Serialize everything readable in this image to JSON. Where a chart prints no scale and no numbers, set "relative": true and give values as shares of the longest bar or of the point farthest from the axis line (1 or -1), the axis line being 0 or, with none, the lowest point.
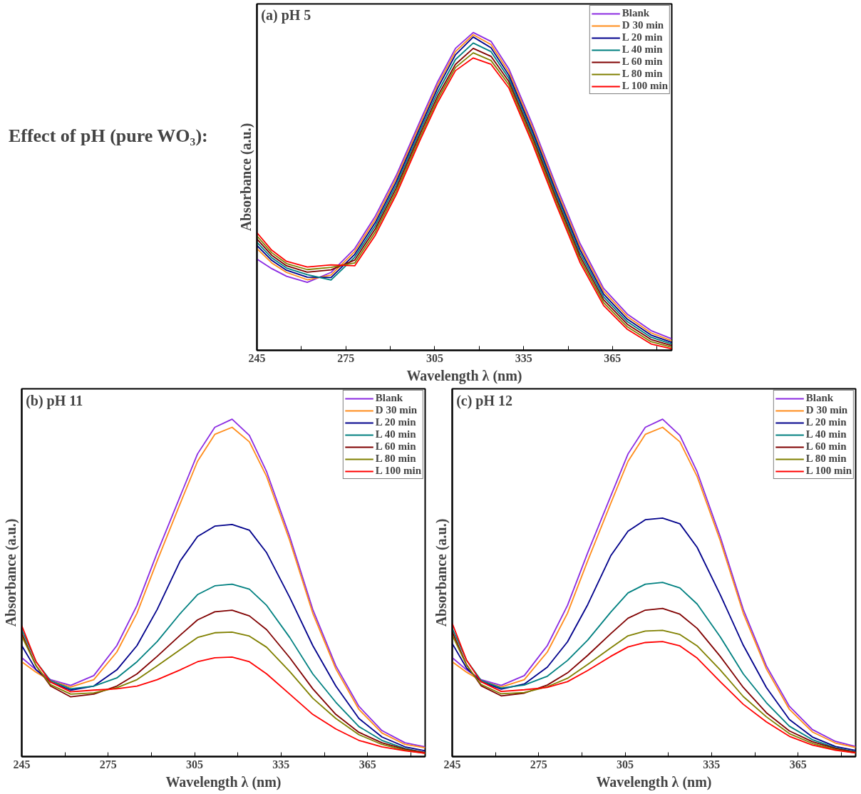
{
  "chart_data": [
    {
      "type": "other",
      "title": "Effect of pH (pure WO₃):"
    },
    {
      "type": "line",
      "title": "(a) pH 5",
      "xlabel": "Wavelength λ (nm)",
      "ylabel": "Absorbance (a.u.)",
      "relative": true,
      "tick_labels": "x",
      "legend": "top right",
      "x": [
        245,
        250,
        255,
        262,
        270,
        278,
        285,
        292,
        300,
        306,
        312,
        318,
        324,
        330,
        338,
        346,
        354,
        362,
        370,
        378,
        385
      ],
      "xlim": [
        245,
        385
      ],
      "xticks": [
        245,
        {
          "value": 260,
          "label": null
        },
        275,
        {
          "value": 290,
          "label": null
        },
        305,
        {
          "value": 320,
          "label": null
        },
        335,
        {
          "value": 350,
          "label": null
        },
        365,
        {
          "value": 380,
          "label": null
        }
      ],
      "series": [
        {
          "name": "Blank",
          "color": "#8b2be2",
          "values": [
            0.287,
            0.257,
            0.233,
            0.214,
            0.245,
            0.32,
            0.423,
            0.55,
            0.72,
            0.845,
            0.95,
            1.0,
            0.972,
            0.886,
            0.71,
            0.518,
            0.337,
            0.195,
            0.114,
            0.062,
            0.036
          ]
        },
        {
          "name": "D 30 min",
          "color": "#ff8c1a",
          "values": [
            0.32,
            0.275,
            0.245,
            0.222,
            0.237,
            0.311,
            0.413,
            0.54,
            0.71,
            0.835,
            0.94,
            0.993,
            0.962,
            0.876,
            0.7,
            0.508,
            0.327,
            0.186,
            0.106,
            0.055,
            0.03
          ]
        },
        {
          "name": "L 20 min",
          "color": "#00008b",
          "values": [
            0.33,
            0.283,
            0.252,
            0.23,
            0.229,
            0.302,
            0.403,
            0.53,
            0.7,
            0.825,
            0.93,
            0.986,
            0.952,
            0.866,
            0.69,
            0.498,
            0.317,
            0.177,
            0.098,
            0.048,
            0.025
          ]
        },
        {
          "name": "L 40 min",
          "color": "#008080",
          "values": [
            0.34,
            0.291,
            0.259,
            0.238,
            0.221,
            0.293,
            0.393,
            0.52,
            0.69,
            0.812,
            0.915,
            0.967,
            0.94,
            0.856,
            0.68,
            0.488,
            0.307,
            0.168,
            0.09,
            0.041,
            0.02
          ]
        },
        {
          "name": "L 60 min",
          "color": "#800000",
          "values": [
            0.35,
            0.299,
            0.266,
            0.246,
            0.253,
            0.284,
            0.383,
            0.51,
            0.68,
            0.8,
            0.9,
            0.95,
            0.925,
            0.846,
            0.67,
            0.478,
            0.297,
            0.159,
            0.082,
            0.034,
            0.015
          ]
        },
        {
          "name": "L 80 min",
          "color": "#808000",
          "values": [
            0.36,
            0.307,
            0.273,
            0.254,
            0.261,
            0.275,
            0.373,
            0.5,
            0.67,
            0.79,
            0.89,
            0.936,
            0.912,
            0.836,
            0.66,
            0.468,
            0.287,
            0.15,
            0.074,
            0.027,
            0.01
          ]
        },
        {
          "name": "L 100 min",
          "color": "#ff0000",
          "values": [
            0.37,
            0.315,
            0.28,
            0.262,
            0.269,
            0.266,
            0.363,
            0.49,
            0.66,
            0.78,
            0.88,
            0.92,
            0.9,
            0.826,
            0.65,
            0.458,
            0.277,
            0.141,
            0.066,
            0.02,
            0.005
          ]
        }
      ]
    },
    {
      "type": "line",
      "title": "(b) pH 11",
      "xlabel": "Wavelength λ (nm)",
      "ylabel": "Absorbance (a.u.)",
      "relative": true,
      "tick_labels": "x",
      "legend": "top right",
      "x": [
        245,
        250,
        255,
        262,
        270,
        278,
        285,
        292,
        300,
        306,
        312,
        318,
        324,
        330,
        338,
        346,
        354,
        362,
        370,
        378,
        385
      ],
      "xlim": [
        245,
        385
      ],
      "xticks": [
        245,
        {
          "value": 260,
          "label": null
        },
        275,
        {
          "value": 290,
          "label": null
        },
        305,
        {
          "value": 320,
          "label": null
        },
        335,
        {
          "value": 350,
          "label": null
        },
        365,
        {
          "value": 380,
          "label": null
        }
      ],
      "series": [
        {
          "name": "Blank",
          "color": "#8b2be2",
          "values": [
            0.293,
            0.257,
            0.228,
            0.211,
            0.24,
            0.329,
            0.448,
            0.604,
            0.772,
            0.897,
            0.976,
            1.0,
            0.952,
            0.844,
            0.652,
            0.436,
            0.269,
            0.149,
            0.077,
            0.041,
            0.029
          ]
        },
        {
          "name": "D 30 min",
          "color": "#ff8c1a",
          "values": [
            0.281,
            0.25,
            0.225,
            0.206,
            0.228,
            0.31,
            0.425,
            0.58,
            0.75,
            0.875,
            0.955,
            0.976,
            0.933,
            0.83,
            0.64,
            0.425,
            0.26,
            0.14,
            0.07,
            0.036,
            0.026
          ]
        },
        {
          "name": "L 20 min",
          "color": "#00008b",
          "values": [
            0.329,
            0.257,
            0.221,
            0.197,
            0.209,
            0.257,
            0.329,
            0.436,
            0.58,
            0.652,
            0.683,
            0.688,
            0.671,
            0.604,
            0.472,
            0.329,
            0.209,
            0.113,
            0.058,
            0.029,
            0.017
          ]
        },
        {
          "name": "L 40 min",
          "color": "#008080",
          "values": [
            0.376,
            0.281,
            0.225,
            0.201,
            0.209,
            0.233,
            0.281,
            0.341,
            0.424,
            0.48,
            0.506,
            0.511,
            0.496,
            0.448,
            0.353,
            0.245,
            0.161,
            0.089,
            0.048,
            0.024,
            0.012
          ]
        },
        {
          "name": "L 60 min",
          "color": "#800000",
          "values": [
            0.365,
            0.269,
            0.209,
            0.177,
            0.185,
            0.209,
            0.245,
            0.297,
            0.36,
            0.405,
            0.429,
            0.434,
            0.417,
            0.376,
            0.293,
            0.201,
            0.125,
            0.072,
            0.041,
            0.022,
            0.012
          ]
        },
        {
          "name": "L 80 min",
          "color": "#808000",
          "values": [
            0.357,
            0.269,
            0.213,
            0.185,
            0.189,
            0.204,
            0.228,
            0.269,
            0.317,
            0.353,
            0.367,
            0.369,
            0.357,
            0.324,
            0.252,
            0.173,
            0.113,
            0.065,
            0.036,
            0.019,
            0.01
          ]
        },
        {
          "name": "L 100 min",
          "color": "#ff0000",
          "values": [
            0.388,
            0.281,
            0.221,
            0.192,
            0.197,
            0.201,
            0.209,
            0.228,
            0.257,
            0.281,
            0.293,
            0.295,
            0.281,
            0.245,
            0.185,
            0.125,
            0.082,
            0.048,
            0.029,
            0.017,
            0.01
          ]
        }
      ]
    },
    {
      "type": "line",
      "title": "(c) pH 12",
      "xlabel": "Wavelength λ (nm)",
      "ylabel": "Absorbance (a.u.)",
      "relative": true,
      "tick_labels": "x",
      "legend": "top right",
      "x": [
        245,
        250,
        255,
        262,
        270,
        278,
        285,
        292,
        300,
        306,
        312,
        318,
        324,
        330,
        338,
        346,
        354,
        362,
        370,
        378,
        385
      ],
      "xlim": [
        245,
        385
      ],
      "xticks": [
        245,
        {
          "value": 260,
          "label": null
        },
        275,
        {
          "value": 290,
          "label": null
        },
        305,
        {
          "value": 320,
          "label": null
        },
        335,
        {
          "value": 350,
          "label": null
        },
        365,
        {
          "value": 380,
          "label": null
        }
      ],
      "series": [
        {
          "name": "Blank",
          "color": "#8b2be2",
          "values": [
            0.293,
            0.257,
            0.228,
            0.211,
            0.24,
            0.329,
            0.448,
            0.604,
            0.772,
            0.897,
            0.976,
            1.0,
            0.952,
            0.844,
            0.652,
            0.436,
            0.269,
            0.149,
            0.08,
            0.045,
            0.03
          ]
        },
        {
          "name": "D 30 min",
          "color": "#ff8c1a",
          "values": [
            0.281,
            0.25,
            0.225,
            0.206,
            0.228,
            0.31,
            0.425,
            0.58,
            0.75,
            0.875,
            0.955,
            0.976,
            0.933,
            0.83,
            0.64,
            0.425,
            0.26,
            0.14,
            0.073,
            0.04,
            0.027
          ]
        },
        {
          "name": "L 20 min",
          "color": "#00008b",
          "values": [
            0.335,
            0.262,
            0.222,
            0.2,
            0.215,
            0.265,
            0.34,
            0.45,
            0.595,
            0.668,
            0.702,
            0.707,
            0.69,
            0.62,
            0.48,
            0.33,
            0.205,
            0.11,
            0.058,
            0.03,
            0.018
          ]
        },
        {
          "name": "L 40 min",
          "color": "#008080",
          "values": [
            0.38,
            0.285,
            0.226,
            0.203,
            0.212,
            0.238,
            0.285,
            0.345,
            0.428,
            0.485,
            0.511,
            0.516,
            0.5,
            0.452,
            0.355,
            0.245,
            0.16,
            0.09,
            0.05,
            0.026,
            0.014
          ]
        },
        {
          "name": "L 60 min",
          "color": "#800000",
          "values": [
            0.37,
            0.272,
            0.21,
            0.18,
            0.188,
            0.212,
            0.248,
            0.3,
            0.364,
            0.41,
            0.434,
            0.439,
            0.422,
            0.38,
            0.297,
            0.205,
            0.13,
            0.076,
            0.044,
            0.024,
            0.013
          ]
        },
        {
          "name": "L 80 min",
          "color": "#808000",
          "values": [
            0.36,
            0.27,
            0.214,
            0.186,
            0.19,
            0.207,
            0.232,
            0.273,
            0.322,
            0.358,
            0.372,
            0.374,
            0.362,
            0.328,
            0.257,
            0.178,
            0.118,
            0.068,
            0.039,
            0.021,
            0.011
          ]
        },
        {
          "name": "L 100 min",
          "color": "#ff0000",
          "values": [
            0.395,
            0.285,
            0.222,
            0.193,
            0.198,
            0.205,
            0.222,
            0.255,
            0.297,
            0.325,
            0.338,
            0.341,
            0.328,
            0.292,
            0.222,
            0.155,
            0.103,
            0.06,
            0.034,
            0.019,
            0.011
          ]
        }
      ]
    }
  ]
}
